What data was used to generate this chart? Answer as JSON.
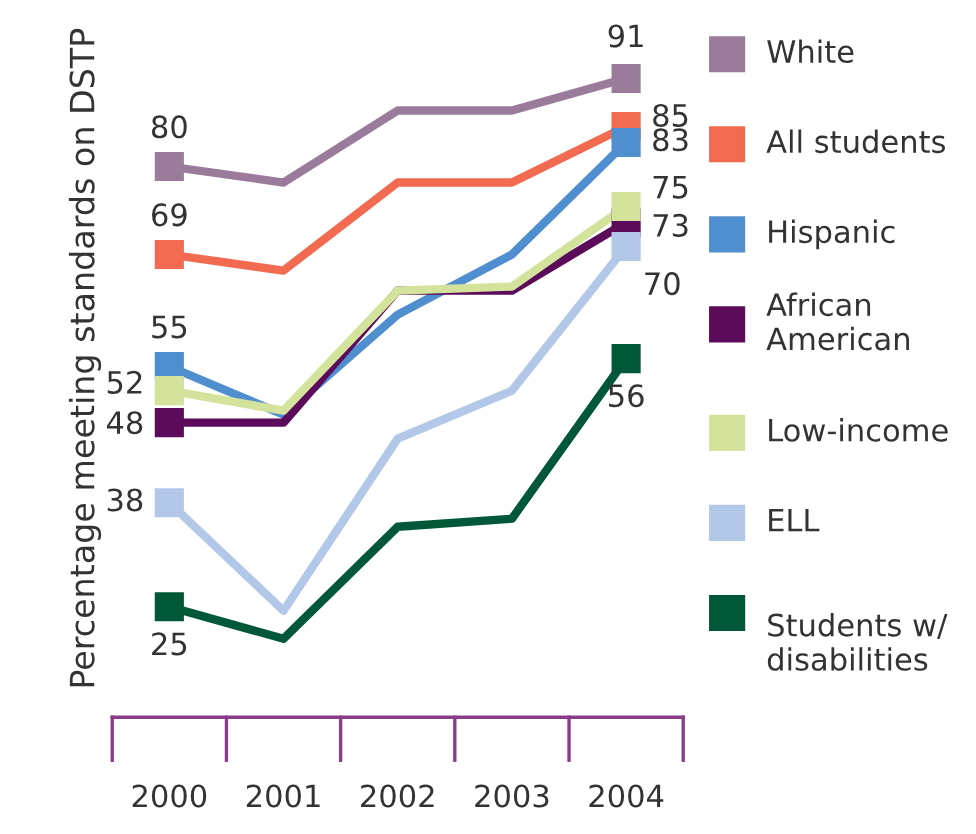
{
  "chart_data": {
    "type": "line",
    "ylabel": "Percentage meeting standards on DSTP",
    "categories": [
      "2000",
      "2001",
      "2002",
      "2003",
      "2004"
    ],
    "series": [
      {
        "name": "White",
        "color": "#9b7b9b",
        "values": [
          80,
          78,
          87,
          87,
          91
        ],
        "value_labels": [
          "80",
          null,
          null,
          null,
          "91"
        ]
      },
      {
        "name": "All students",
        "color": "#f26a50",
        "values": [
          69,
          67,
          78,
          78,
          85
        ],
        "value_labels": [
          "69",
          null,
          null,
          null,
          "85"
        ]
      },
      {
        "name": "Hispanic",
        "color": "#4f8fcf",
        "values": [
          55,
          49,
          61.5,
          69,
          83
        ],
        "value_labels": [
          "55",
          null,
          null,
          null,
          "83"
        ]
      },
      {
        "name": "African American",
        "color": "#5c0a5a",
        "values": [
          48,
          48,
          64.5,
          64.5,
          73
        ],
        "value_labels": [
          "48",
          null,
          null,
          null,
          "73"
        ]
      },
      {
        "name": "Low-income",
        "color": "#d4e39c",
        "values": [
          52,
          49.5,
          64.5,
          65,
          75
        ],
        "value_labels": [
          "52",
          null,
          null,
          null,
          "75"
        ]
      },
      {
        "name": "ELL",
        "color": "#b3c8e8",
        "values": [
          38,
          24.5,
          46,
          52,
          70
        ],
        "value_labels": [
          "38",
          null,
          null,
          null,
          "70"
        ]
      },
      {
        "name": "Students w/ disabilities",
        "color": "#005838",
        "values": [
          25,
          21,
          35,
          36,
          56
        ],
        "value_labels": [
          "25",
          null,
          null,
          null,
          "56"
        ]
      }
    ],
    "tick_labels": "x",
    "grid": false,
    "legend": "right",
    "line_style": "solid"
  }
}
